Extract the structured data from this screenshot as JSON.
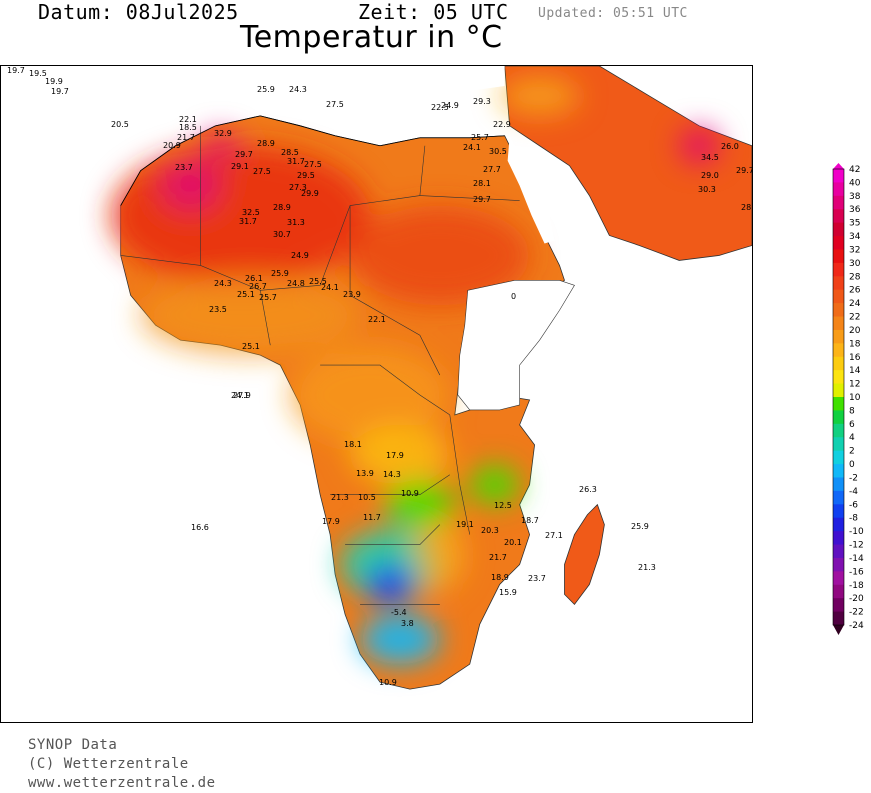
{
  "header": {
    "datum": "Datum: 08Jul2025",
    "zeit": "Zeit: 05 UTC",
    "updated": "Updated: 05:51 UTC",
    "title": "Temperatur in °C"
  },
  "footer": {
    "line1": "SYNOP Data",
    "line2": "(C) Wetterzentrale",
    "line3": "www.wetterzentrale.de"
  },
  "legend": {
    "labels": [
      "42",
      "40",
      "38",
      "36",
      "35",
      "34",
      "32",
      "30",
      "28",
      "26",
      "24",
      "22",
      "20",
      "18",
      "16",
      "14",
      "12",
      "10",
      "8",
      "6",
      "4",
      "2",
      "0",
      "-2",
      "-4",
      "-6",
      "-8",
      "-10",
      "-12",
      "-14",
      "-16",
      "-18",
      "-20",
      "-22",
      "-24"
    ],
    "colors": [
      "#f000c8",
      "#e800a0",
      "#e00078",
      "#d80050",
      "#d00030",
      "#e00020",
      "#e81010",
      "#f02818",
      "#f04018",
      "#f05818",
      "#f06c18",
      "#f48418",
      "#f89c18",
      "#fcb418",
      "#fccc10",
      "#fce410",
      "#e0f000",
      "#40e000",
      "#10d040",
      "#10d080",
      "#10d0b0",
      "#10d0e0",
      "#10b8f8",
      "#1090f8",
      "#1068f8",
      "#1040f0",
      "#2020e0",
      "#4010d0",
      "#6010c0",
      "#8010b0",
      "#a010a0",
      "#900880",
      "#700060",
      "#500040",
      "#300020"
    ]
  },
  "stations": [
    {
      "t": "19.7"
    },
    {
      "t": "19.5"
    },
    {
      "t": "19.9"
    },
    {
      "t": "19.7"
    },
    {
      "t": "20.5"
    },
    {
      "t": "22.1"
    },
    {
      "t": "18.5"
    },
    {
      "t": "21.7"
    },
    {
      "t": "20.9"
    },
    {
      "t": "32.9"
    },
    {
      "t": "29.7"
    },
    {
      "t": "23.7"
    },
    {
      "t": "29.1"
    },
    {
      "t": "27.5"
    },
    {
      "t": "28.9"
    },
    {
      "t": "28.5"
    },
    {
      "t": "31.7"
    },
    {
      "t": "27.5"
    },
    {
      "t": "29.5"
    },
    {
      "t": "27.3"
    },
    {
      "t": "29.9"
    },
    {
      "t": "28.9"
    },
    {
      "t": "32.5"
    },
    {
      "t": "31.7"
    },
    {
      "t": "31.3"
    },
    {
      "t": "30.7"
    },
    {
      "t": "24.9"
    },
    {
      "t": "25.9"
    },
    {
      "t": "26.1"
    },
    {
      "t": "26.7"
    },
    {
      "t": "24.3"
    },
    {
      "t": "25.1"
    },
    {
      "t": "25.7"
    },
    {
      "t": "23.5"
    },
    {
      "t": "24.8"
    },
    {
      "t": "25.5"
    },
    {
      "t": "24.1"
    },
    {
      "t": "23.9"
    },
    {
      "t": "22.1"
    },
    {
      "t": "25.1"
    },
    {
      "t": "27.9"
    },
    {
      "t": "25.9"
    },
    {
      "t": "24.3"
    },
    {
      "t": "27.5"
    },
    {
      "t": "24.9"
    },
    {
      "t": "22.5"
    },
    {
      "t": "29.3"
    },
    {
      "t": "25.7"
    },
    {
      "t": "24.1"
    },
    {
      "t": "30.5"
    },
    {
      "t": "22.9"
    },
    {
      "t": "27.7"
    },
    {
      "t": "28.1"
    },
    {
      "t": "29.7"
    },
    {
      "t": "24.1"
    },
    {
      "t": "18.1"
    },
    {
      "t": "17.9"
    },
    {
      "t": "13.9"
    },
    {
      "t": "14.3"
    },
    {
      "t": "21.3"
    },
    {
      "t": "10.5"
    },
    {
      "t": "10.9"
    },
    {
      "t": "11.7"
    },
    {
      "t": "17.9"
    },
    {
      "t": "16.6"
    },
    {
      "t": "12.5"
    },
    {
      "t": "19.1"
    },
    {
      "t": "20.3"
    },
    {
      "t": "18.7"
    },
    {
      "t": "20.1"
    },
    {
      "t": "21.7"
    },
    {
      "t": "18.9"
    },
    {
      "t": "15.9"
    },
    {
      "t": "23.7"
    },
    {
      "t": "27.1"
    },
    {
      "t": "26.3"
    },
    {
      "t": "25.9"
    },
    {
      "t": "21.3"
    },
    {
      "t": "-5.4"
    },
    {
      "t": "3.8"
    },
    {
      "t": "10.9"
    },
    {
      "t": "34.5"
    },
    {
      "t": "26.0"
    },
    {
      "t": "29.0"
    },
    {
      "t": "30.3"
    },
    {
      "t": "29.7"
    },
    {
      "t": "28.9"
    },
    {
      "t": "0"
    }
  ]
}
